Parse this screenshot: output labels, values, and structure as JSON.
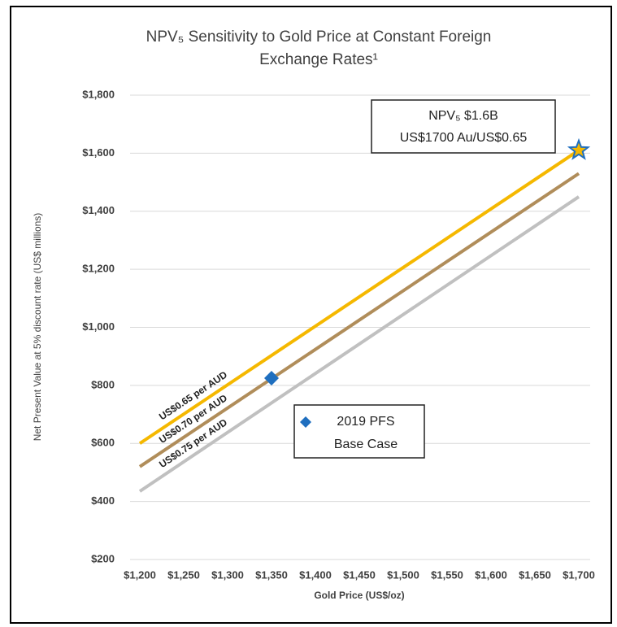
{
  "chart_data": {
    "type": "line",
    "title": [
      "NPV₅ Sensitivity to Gold Price at Constant Foreign",
      "Exchange Rates¹"
    ],
    "x_label": "Gold Price (US$/oz)",
    "y_label": "Net Present Value at 5% discount rate (US$ millions)",
    "x": [
      1200,
      1700
    ],
    "series": [
      {
        "name": "US$0.65 per AUD",
        "color": "#f5b800",
        "values": [
          600,
          1610
        ]
      },
      {
        "name": "US$0.70 per AUD",
        "color": "#b08d5a",
        "values": [
          520,
          1530
        ]
      },
      {
        "name": "US$0.75 per AUD",
        "color": "#c0c0c0",
        "values": [
          435,
          1450
        ]
      }
    ],
    "markers": [
      {
        "shape": "diamond",
        "color": "#1f6fbf",
        "x": 1350,
        "y": 825
      },
      {
        "shape": "star",
        "color": "#f5b800",
        "stroke": "#1f6fbf",
        "x": 1700,
        "y": 1610
      }
    ],
    "annotations": [
      {
        "text": [
          "NPV₅ $1.6B",
          "US$1700 Au/US$0.65"
        ]
      },
      {
        "text": [
          "2019 PFS",
          "Base Case"
        ]
      }
    ],
    "xlim": [
      1200,
      1700
    ],
    "xticks": [
      {
        "value": 1200,
        "label": "$1,200"
      },
      {
        "value": 1250,
        "label": "$1,250"
      },
      {
        "value": 1300,
        "label": "$1,300"
      },
      {
        "value": 1350,
        "label": "$1,350"
      },
      {
        "value": 1400,
        "label": "$1,400"
      },
      {
        "value": 1450,
        "label": "$1,450"
      },
      {
        "value": 1500,
        "label": "$1,500"
      },
      {
        "value": 1550,
        "label": "$1,550"
      },
      {
        "value": 1600,
        "label": "$1,600"
      },
      {
        "value": 1650,
        "label": "$1,650"
      },
      {
        "value": 1700,
        "label": "$1,700"
      }
    ],
    "ylim": [
      200,
      1800
    ],
    "yticks": [
      {
        "value": 200,
        "label": "$200"
      },
      {
        "value": 400,
        "label": "$400"
      },
      {
        "value": 600,
        "label": "$600"
      },
      {
        "value": 800,
        "label": "$800"
      },
      {
        "value": 1000,
        "label": "$1,000"
      },
      {
        "value": 1200,
        "label": "$1,200"
      },
      {
        "value": 1400,
        "label": "$1,400"
      },
      {
        "value": 1600,
        "label": "$1,600"
      },
      {
        "value": 1800,
        "label": "$1,800"
      }
    ],
    "grid": true
  }
}
